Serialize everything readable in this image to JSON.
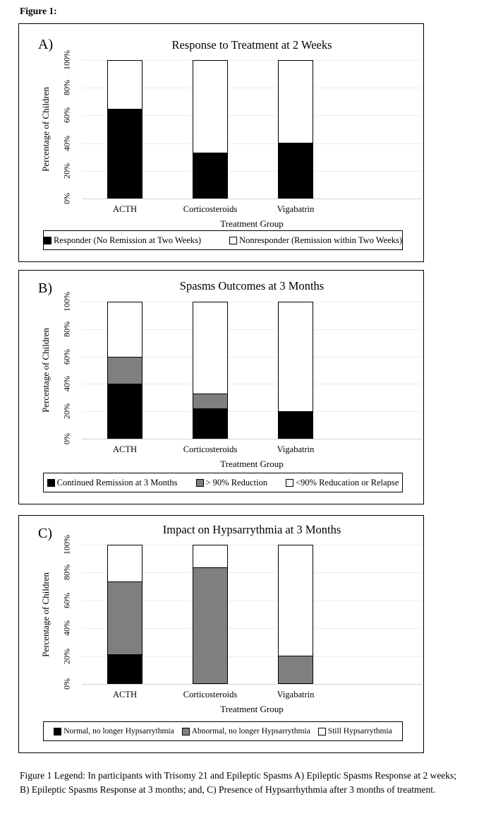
{
  "figure_label": "Figure 1:",
  "caption": "Figure 1 Legend: In participants with Trisomy 21 and Epileptic Spasms A) Epileptic Spasms Response at 2 weeks; B) Epileptic Spasms Response at 3 months; and, C) Presence of Hypsarrhythmia after 3 months of treatment.",
  "colors": {
    "bar_black": "#000000",
    "bar_gray": "#7f7f7f",
    "bar_white": "#ffffff",
    "bar_outline": "#000000",
    "gridline": "#ececec",
    "axis_line": "#d2d2d2",
    "panel_border": "#000000"
  },
  "chart_data": [
    {
      "type": "bar",
      "stacked": true,
      "panel_label": "A)",
      "title": "Response to Treatment at 2 Weeks",
      "categories": [
        "ACTH",
        "Corticosteroids",
        "Vigabatrin"
      ],
      "xlabel": "Treatment Group",
      "ylabel": "Percentage of Children",
      "ylim": [
        0,
        100
      ],
      "yticks": [
        "0%",
        "20%",
        "40%",
        "60%",
        "80%",
        "100%"
      ],
      "grid": true,
      "legend_position": "bottom",
      "series": [
        {
          "name": "Responder (No Remission at Two Weeks)",
          "fill": "#000000",
          "values": [
            65,
            33,
            40
          ]
        },
        {
          "name": "Nonresponder (Remission within Two Weeks)",
          "fill": "#ffffff",
          "values": [
            35,
            67,
            60
          ]
        }
      ]
    },
    {
      "type": "bar",
      "stacked": true,
      "panel_label": "B)",
      "title": "Spasms Outcomes at 3 Months",
      "categories": [
        "ACTH",
        "Corticosteroids",
        "Vigabatrin"
      ],
      "xlabel": "Treatment Group",
      "ylabel": "Percentage of Children",
      "ylim": [
        0,
        100
      ],
      "yticks": [
        "0%",
        "20%",
        "40%",
        "60%",
        "80%",
        "100%"
      ],
      "grid": true,
      "legend_position": "bottom",
      "series": [
        {
          "name": "Continued Remission at 3 Months",
          "fill": "#000000",
          "values": [
            40,
            22,
            20
          ]
        },
        {
          "name": "> 90% Reduction",
          "fill": "#7f7f7f",
          "values": [
            20,
            11,
            0
          ]
        },
        {
          "name": "<90% Reducation or Relapse",
          "fill": "#ffffff",
          "values": [
            40,
            67,
            80
          ]
        }
      ]
    },
    {
      "type": "bar",
      "stacked": true,
      "panel_label": "C)",
      "title": "Impact on Hypsarrythmia at 3 Months",
      "categories": [
        "ACTH",
        "Corticosteroids",
        "Vigabatrin"
      ],
      "xlabel": "Treatment Group",
      "ylabel": "Percentage of Children",
      "ylim": [
        0,
        100
      ],
      "yticks": [
        "0%",
        "20%",
        "40%",
        "60%",
        "80%",
        "100%"
      ],
      "grid": true,
      "legend_position": "bottom",
      "series": [
        {
          "name": "Normal, no longer Hypsarrythmia",
          "fill": "#000000",
          "values": [
            21,
            0,
            0
          ]
        },
        {
          "name": "Abnormal, no longer Hypsarrythmia",
          "fill": "#7f7f7f",
          "values": [
            53,
            84,
            20
          ]
        },
        {
          "name": "Still Hypsarrythmia",
          "fill": "#ffffff",
          "values": [
            26,
            16,
            80
          ]
        }
      ]
    }
  ]
}
